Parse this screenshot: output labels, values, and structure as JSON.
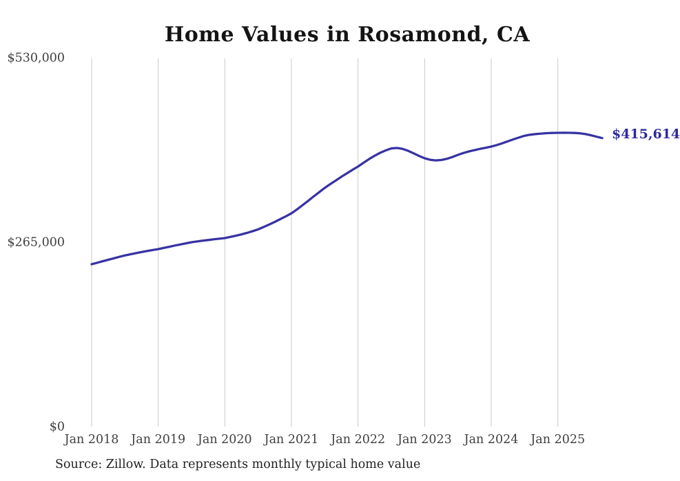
{
  "chart_data": {
    "type": "line",
    "title": "Home Values in Rosamond, CA",
    "source": "Source: Zillow. Data represents monthly typical home value",
    "end_label": "$415,614",
    "end_value": 415614,
    "line_color": "#3733a3",
    "end_label_color": "#2e2a9e",
    "grid_color": "#c9c9c9",
    "axis_label_color": "#3f3f3f",
    "x_tick_labels": [
      "Jan 2018",
      "Jan 2019",
      "Jan 2020",
      "Jan 2021",
      "Jan 2022",
      "Jan 2023",
      "Jan 2024",
      "Jan 2025"
    ],
    "y_tick_labels": [
      "$0",
      "$265,000",
      "$530,000"
    ],
    "y_ticks": [
      0,
      265000,
      530000
    ],
    "ylim": [
      0,
      530000
    ],
    "grid": "vertical-only",
    "legend": "none",
    "series": [
      {
        "name": "Typical home value",
        "unit": "USD",
        "frequency": "monthly",
        "start_month": "2018-01",
        "end_month": "2025-09",
        "values": [
          234300,
          236500,
          238700,
          240800,
          242900,
          245000,
          247000,
          248700,
          250300,
          251800,
          253300,
          254700,
          256100,
          257800,
          259500,
          261200,
          262800,
          264400,
          266000,
          267100,
          268200,
          269200,
          270100,
          271000,
          271900,
          273600,
          275400,
          277300,
          279400,
          281800,
          284500,
          287800,
          291400,
          295200,
          299200,
          303300,
          307500,
          313200,
          319200,
          325400,
          331700,
          337900,
          344000,
          349500,
          354800,
          360000,
          365100,
          370000,
          374800,
          380200,
          385500,
          390300,
          394500,
          398000,
          400800,
          401500,
          400200,
          397400,
          393800,
          390000,
          386600,
          384400,
          383600,
          384200,
          385800,
          388400,
          391500,
          394200,
          396500,
          398400,
          400200,
          401800,
          403400,
          405600,
          408200,
          411000,
          413800,
          416500,
          419000,
          420400,
          421400,
          422100,
          422700,
          423000,
          423200,
          423300,
          423200,
          423000,
          422500,
          421300,
          419600,
          417600,
          415614
        ]
      }
    ]
  }
}
